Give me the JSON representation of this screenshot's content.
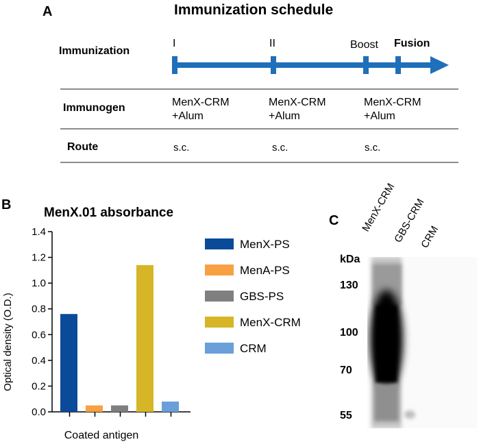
{
  "panel_a": {
    "label": "A",
    "title": "Immunization schedule",
    "row_immunization": "Immunization",
    "timepoints": [
      "I",
      "II",
      "Boost",
      "Fusion"
    ],
    "row_immunogen": "Immunogen",
    "immunogen_line1": [
      "MenX-CRM",
      "MenX-CRM",
      "MenX-CRM"
    ],
    "immunogen_line2": [
      "+Alum",
      "+Alum",
      "+Alum"
    ],
    "row_route": "Route",
    "routes": [
      "s.c.",
      "s.c.",
      "s.c."
    ],
    "colors": {
      "arrow": "#1f6fba",
      "rule": "#8c8c8c"
    }
  },
  "panel_b": {
    "label": "B"
  },
  "panel_c": {
    "label": "C",
    "kda_label": "kDa",
    "markers": [
      "130",
      "100",
      "70",
      "55"
    ],
    "lanes": [
      "MenX-CRM",
      "GBS-CRM",
      "CRM"
    ]
  },
  "chart_data": {
    "type": "bar",
    "title": "MenX.01 absorbance",
    "xlabel": "Coated antigen",
    "ylabel": "Optical density (O.D.)",
    "ylim": [
      0,
      1.4
    ],
    "yticks": [
      "0.0",
      "0.2",
      "0.4",
      "0.6",
      "0.8",
      "1.0",
      "1.2",
      "1.4"
    ],
    "ytick_values": [
      0,
      0.2,
      0.4,
      0.6,
      0.8,
      1.0,
      1.2,
      1.4
    ],
    "categories": [
      "MenX-PS",
      "MenA-PS",
      "GBS-PS",
      "MenX-CRM",
      "CRM"
    ],
    "values": [
      0.76,
      0.05,
      0.05,
      1.14,
      0.08
    ],
    "colors": [
      "#0b4a99",
      "#f7a142",
      "#7f7f7f",
      "#d6b626",
      "#6a9fda"
    ],
    "legend": [
      "MenX-PS",
      "MenA-PS",
      "GBS-PS",
      "MenX-CRM",
      "CRM"
    ],
    "legend_position": "right"
  }
}
